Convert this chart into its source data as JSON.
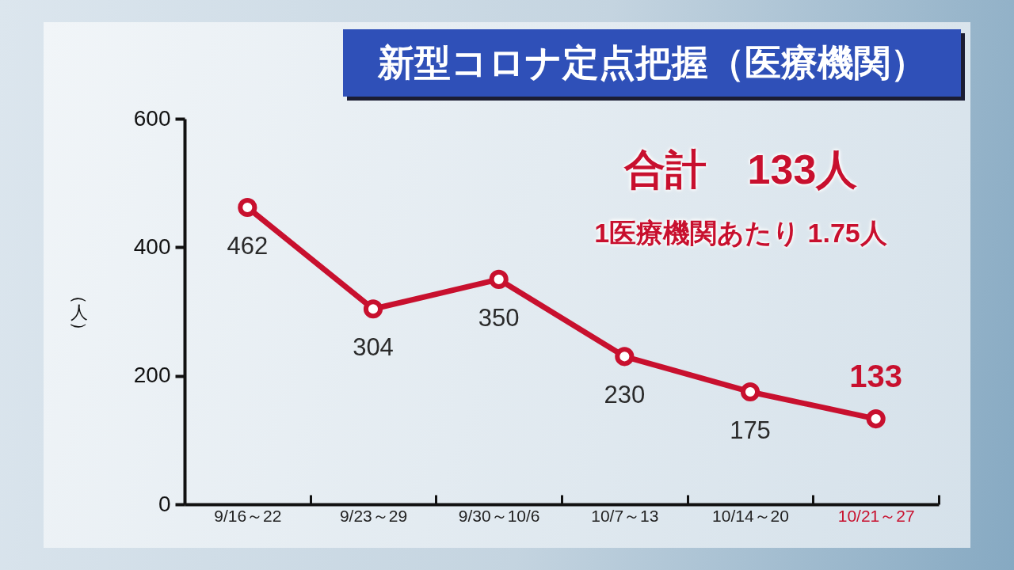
{
  "chart_data": {
    "type": "line",
    "title": "新型コロナ定点把握（医療機関）",
    "ylabel": "（人）",
    "categories": [
      "9/16～22",
      "9/23～29",
      "9/30～10/6",
      "10/7～13",
      "10/14～20",
      "10/21～27"
    ],
    "values": [
      462,
      304,
      350,
      230,
      175,
      133
    ],
    "color": "#c8102e",
    "ylim": [
      0,
      600
    ],
    "yticks": [
      0,
      200,
      400,
      600
    ],
    "marker": "circle",
    "line_style": "solid",
    "data_labels": true,
    "annotations": [
      "合計　133人",
      "1医療機関あたり 1.75人"
    ]
  }
}
